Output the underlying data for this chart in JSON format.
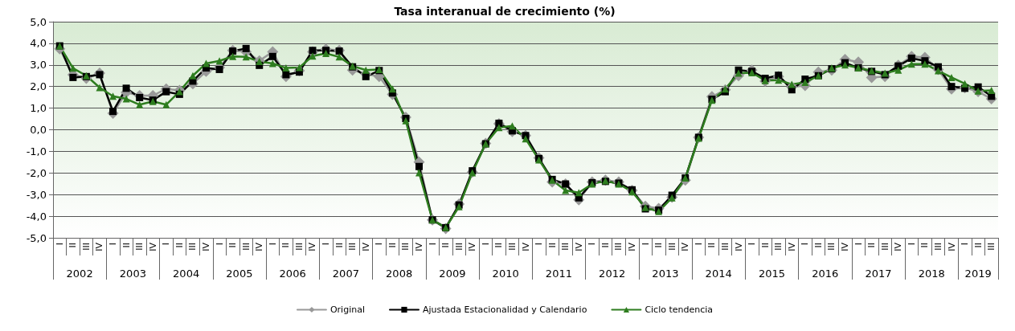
{
  "chart_data": {
    "type": "line",
    "title": "Tasa interanual de crecimiento (%)",
    "categories": [
      "I",
      "II",
      "III",
      "IV",
      "I",
      "II",
      "III",
      "IV",
      "I",
      "II",
      "III",
      "IV",
      "I",
      "II",
      "III",
      "IV",
      "I",
      "II",
      "III",
      "IV",
      "I",
      "II",
      "III",
      "IV",
      "I",
      "II",
      "III",
      "IV",
      "I",
      "II",
      "III",
      "IV",
      "I",
      "II",
      "III",
      "IV",
      "I",
      "II",
      "III",
      "IV",
      "I",
      "II",
      "III",
      "IV",
      "I",
      "II",
      "III",
      "IV",
      "I",
      "II",
      "III",
      "IV",
      "I",
      "II",
      "III",
      "IV",
      "I",
      "II",
      "III",
      "IV",
      "I",
      "II",
      "III",
      "IV",
      "I",
      "II",
      "III",
      "IV",
      "I",
      "II",
      "III"
    ],
    "annotations": [
      "2002",
      "2003",
      "2004",
      "2005",
      "2006",
      "2007",
      "2008",
      "2009",
      "2010",
      "2011",
      "2012",
      "2013",
      "2014",
      "2015",
      "2016",
      "2017",
      "2018",
      "2019"
    ],
    "series": [
      {
        "name": "Original",
        "color": "#999999",
        "marker": "diamond",
        "values": [
          3.75,
          2.55,
          2.38,
          2.62,
          0.76,
          1.73,
          1.58,
          1.58,
          1.89,
          1.82,
          2.13,
          2.7,
          2.88,
          3.67,
          3.61,
          3.19,
          3.61,
          2.46,
          2.73,
          3.61,
          3.73,
          3.67,
          2.76,
          2.58,
          2.46,
          1.64,
          0.58,
          -1.5,
          -4.17,
          -4.57,
          -3.44,
          -1.96,
          -0.63,
          0.28,
          -0.08,
          -0.27,
          -1.3,
          -2.42,
          -2.51,
          -3.24,
          -2.42,
          -2.33,
          -2.42,
          -2.81,
          -3.54,
          -3.64,
          -3.12,
          -2.33,
          -0.35,
          1.53,
          1.85,
          2.5,
          2.76,
          2.25,
          2.46,
          1.98,
          2.04,
          2.67,
          2.76,
          3.25,
          3.13,
          2.42,
          2.46,
          2.98,
          3.39,
          3.35,
          2.79,
          1.89,
          1.94,
          1.77,
          1.43
        ]
      },
      {
        "name": "Ajustada Estacionalidad y Calendario",
        "color": "#000000",
        "marker": "square",
        "values": [
          3.88,
          2.42,
          2.46,
          2.55,
          0.85,
          1.92,
          1.49,
          1.37,
          1.76,
          1.64,
          2.25,
          2.86,
          2.79,
          3.64,
          3.76,
          2.98,
          3.39,
          2.55,
          2.67,
          3.67,
          3.67,
          3.64,
          2.91,
          2.46,
          2.74,
          1.7,
          0.52,
          -1.7,
          -4.17,
          -4.53,
          -3.48,
          -1.9,
          -0.65,
          0.3,
          -0.05,
          -0.27,
          -1.33,
          -2.3,
          -2.51,
          -3.15,
          -2.45,
          -2.39,
          -2.47,
          -2.78,
          -3.66,
          -3.72,
          -3.03,
          -2.23,
          -0.35,
          1.41,
          1.76,
          2.76,
          2.7,
          2.38,
          2.52,
          1.85,
          2.34,
          2.5,
          2.82,
          3.1,
          2.86,
          2.7,
          2.55,
          2.95,
          3.31,
          3.19,
          2.91,
          2.0,
          1.92,
          1.98,
          1.55
        ]
      },
      {
        "name": "Ciclo tendencia",
        "color": "#2e7d1f",
        "marker": "triangle",
        "values": [
          3.88,
          2.85,
          2.5,
          1.95,
          1.55,
          1.43,
          1.16,
          1.31,
          1.16,
          1.77,
          2.5,
          3.07,
          3.19,
          3.39,
          3.37,
          3.16,
          3.07,
          2.86,
          2.88,
          3.41,
          3.53,
          3.37,
          2.95,
          2.76,
          2.79,
          1.89,
          0.42,
          -1.99,
          -4.17,
          -4.53,
          -3.56,
          -1.99,
          -0.65,
          0.1,
          0.18,
          -0.42,
          -1.39,
          -2.33,
          -2.81,
          -2.91,
          -2.51,
          -2.36,
          -2.51,
          -2.87,
          -3.6,
          -3.78,
          -3.15,
          -2.23,
          -0.39,
          1.37,
          1.89,
          2.62,
          2.64,
          2.28,
          2.3,
          2.1,
          2.19,
          2.5,
          2.85,
          3.0,
          2.86,
          2.73,
          2.62,
          2.76,
          3.04,
          3.04,
          2.73,
          2.42,
          2.13,
          1.79,
          1.82
        ]
      }
    ],
    "ylim": [
      -5,
      5
    ],
    "yticks": [
      {
        "value": -5,
        "label": "-5,0"
      },
      {
        "value": -4,
        "label": "-4,0"
      },
      {
        "value": -3,
        "label": "-3,0"
      },
      {
        "value": -2,
        "label": "-2,0"
      },
      {
        "value": -1,
        "label": "-1,0"
      },
      {
        "value": 0,
        "label": "0,0"
      },
      {
        "value": 1,
        "label": "1,0"
      },
      {
        "value": 2,
        "label": "2,0"
      },
      {
        "value": 3,
        "label": "3,0"
      },
      {
        "value": 4,
        "label": "4,0"
      },
      {
        "value": 5,
        "label": "5,0"
      }
    ],
    "grid": "y",
    "legend": "bottom",
    "line_style": "solid"
  }
}
